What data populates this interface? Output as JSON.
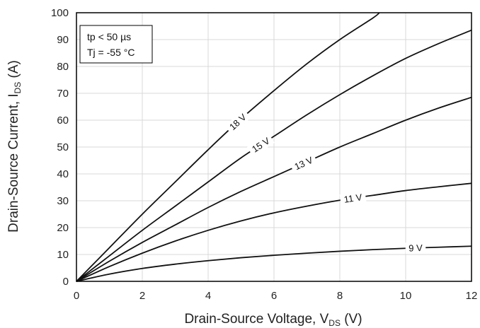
{
  "chart_data": {
    "type": "line",
    "xlabel": "Drain-Source Voltage, V",
    "xlabel_sub": "DS",
    "xlabel_unit": " (V)",
    "ylabel": "Drain-Source Current, I",
    "ylabel_sub": "DS",
    "ylabel_unit": " (A)",
    "xlim": [
      0,
      12
    ],
    "ylim": [
      0,
      100
    ],
    "xticks": [
      "0",
      "2",
      "4",
      "6",
      "8",
      "10",
      "12"
    ],
    "yticks": [
      "0",
      "10",
      "20",
      "30",
      "40",
      "50",
      "60",
      "70",
      "80",
      "90",
      "100"
    ],
    "grid": true,
    "annotation": [
      "tp < 50 µs",
      "Tj = -55 °C"
    ],
    "series": [
      {
        "name": "18 V",
        "label_x": 4.9,
        "x": [
          0,
          1,
          2,
          3,
          4,
          5,
          6,
          7,
          8,
          9,
          9.2
        ],
        "y": [
          0,
          12.5,
          25,
          37,
          49,
          60.5,
          71,
          81,
          90,
          98,
          100
        ]
      },
      {
        "name": "15 V",
        "label_x": 5.6,
        "x": [
          0,
          1,
          2,
          3,
          4,
          5,
          6,
          7,
          8,
          9,
          10,
          11,
          12
        ],
        "y": [
          0,
          9.5,
          19,
          28,
          37,
          46,
          54,
          62,
          69.5,
          76.5,
          83,
          88.5,
          93.5
        ]
      },
      {
        "name": "13 V",
        "label_x": 6.9,
        "x": [
          0,
          1,
          2,
          3,
          4,
          5,
          6,
          7,
          8,
          9,
          10,
          11,
          12
        ],
        "y": [
          0,
          7.5,
          14.5,
          21,
          27.5,
          33.5,
          39,
          44.5,
          50,
          55,
          60,
          64.5,
          68.5
        ]
      },
      {
        "name": "11 V",
        "label_x": 8.4,
        "x": [
          0,
          1,
          2,
          3,
          4,
          5,
          6,
          7,
          8,
          9,
          10,
          11,
          12
        ],
        "y": [
          0,
          5.5,
          10.5,
          15,
          19,
          22.5,
          25.5,
          28,
          30.2,
          32,
          33.8,
          35.2,
          36.5
        ]
      },
      {
        "name": "9 V",
        "label_x": 10.3,
        "x": [
          0,
          1,
          2,
          3,
          4,
          5,
          6,
          7,
          8,
          9,
          10,
          11,
          12
        ],
        "y": [
          0,
          2.7,
          4.8,
          6.4,
          7.7,
          8.8,
          9.7,
          10.5,
          11.2,
          11.8,
          12.3,
          12.7,
          13.1
        ]
      }
    ]
  }
}
